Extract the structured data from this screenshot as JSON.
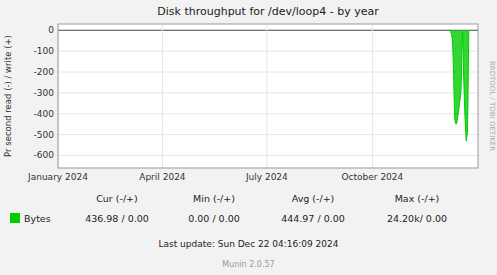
{
  "chart_data": {
    "type": "area",
    "title": "Disk throughput for /dev/loop4 - by year",
    "y_label": "Pr second read (-) / write (+)",
    "x": [
      1733500000,
      1733600000,
      1733620000,
      1733700000,
      1733750000,
      1733800000,
      1733850000,
      1733900000,
      1733950000,
      1734000000,
      1734050000,
      1734100000,
      1734200000,
      1734300000,
      1734400000,
      1734450000,
      1734480000,
      1734500000,
      1734520000,
      1734530000,
      1734540000,
      1734560000,
      1734600000,
      1734700000,
      1734800000,
      1734900000,
      1735000000
    ],
    "series": [
      {
        "name": "Bytes",
        "color": "#00cc00",
        "values": [
          0,
          0,
          -5,
          -20,
          -40,
          -100,
          -200,
          -350,
          -430,
          -445,
          -450,
          -440,
          -400,
          -350,
          -300,
          -200,
          -100,
          -50,
          -20,
          -10,
          -30,
          -60,
          -200,
          -400,
          -530,
          -490,
          0
        ]
      }
    ],
    "xlim": [
      1704067200,
      1735689600
    ],
    "xticks": [
      {
        "value": 1704067200,
        "label": "January 2024"
      },
      {
        "value": 1711929600,
        "label": "April 2024"
      },
      {
        "value": 1719792000,
        "label": "July 2024"
      },
      {
        "value": 1727740800,
        "label": "October 2024"
      }
    ],
    "ylim": [
      -660,
      30
    ],
    "yticks": [
      0,
      -100,
      -200,
      -300,
      -400,
      -500,
      -600
    ],
    "grid": true,
    "legend": "bottom",
    "annotations": [
      "Cur (-/+)",
      "Min (-/+)",
      "Avg (-/+)",
      "Max (-/+)",
      "436.98 /  0.00",
      "0.00 /  0.00",
      "444.97 /  0.00",
      "24.20k/  0.00",
      "Last update: Sun Dec 22 04:16:09 2024",
      "Munin 2.0.57",
      "RRDTOOL / TOBI OETIKER"
    ]
  }
}
